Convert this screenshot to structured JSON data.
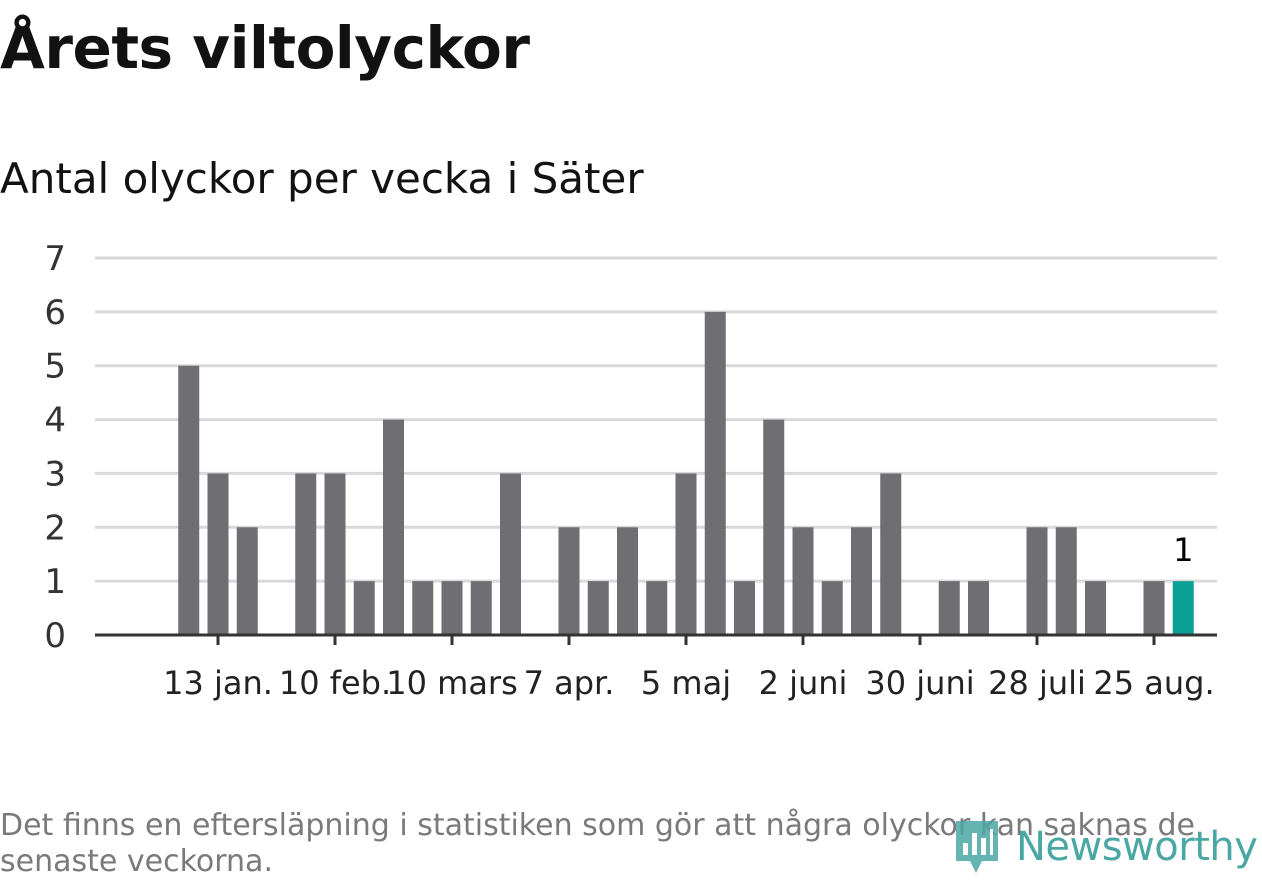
{
  "title": "Årets viltolyckor",
  "subtitle": "Antal olyckor per vecka i Säter",
  "footnote": "Det finns en eftersläpning i statistiken som gör att några olyckor kan saknas de senaste veckorna.",
  "logo": {
    "text": "Newsworthy",
    "icon": "newsworthy-logo-icon"
  },
  "colors": {
    "bar": "#6e6e73",
    "highlight": "#0aa096",
    "grid": "#d9d9d9",
    "axis": "#333333"
  },
  "chart_data": {
    "type": "bar",
    "title": "Årets viltolyckor",
    "subtitle": "Antal olyckor per vecka i Säter",
    "xlabel": "",
    "ylabel": "",
    "ylim": [
      0,
      7
    ],
    "yticks": [
      0,
      1,
      2,
      3,
      4,
      5,
      6,
      7
    ],
    "grid": true,
    "week": [
      1,
      2,
      3,
      4,
      5,
      6,
      7,
      8,
      9,
      10,
      11,
      12,
      13,
      14,
      15,
      16,
      17,
      18,
      19,
      20,
      21,
      22,
      23,
      24,
      25,
      26,
      27,
      28,
      29,
      30,
      31,
      32,
      33,
      34,
      35,
      36,
      37
    ],
    "values": [
      0,
      5,
      3,
      2,
      0,
      3,
      3,
      1,
      4,
      1,
      1,
      1,
      3,
      0,
      2,
      1,
      2,
      1,
      3,
      6,
      1,
      4,
      2,
      1,
      2,
      3,
      0,
      1,
      1,
      0,
      2,
      2,
      1,
      0,
      1,
      1,
      0
    ],
    "x_ticks": [
      {
        "week": 3,
        "label": "13 jan."
      },
      {
        "week": 7,
        "label": "10 feb."
      },
      {
        "week": 11,
        "label": "10 mars"
      },
      {
        "week": 15,
        "label": "7 apr."
      },
      {
        "week": 19,
        "label": "5 maj"
      },
      {
        "week": 23,
        "label": "2 juni"
      },
      {
        "week": 27,
        "label": "30 juni"
      },
      {
        "week": 31,
        "label": "28 juli"
      },
      {
        "week": 35,
        "label": "25 aug."
      }
    ],
    "highlight": {
      "week": 36,
      "value": 1,
      "label": "1"
    }
  }
}
